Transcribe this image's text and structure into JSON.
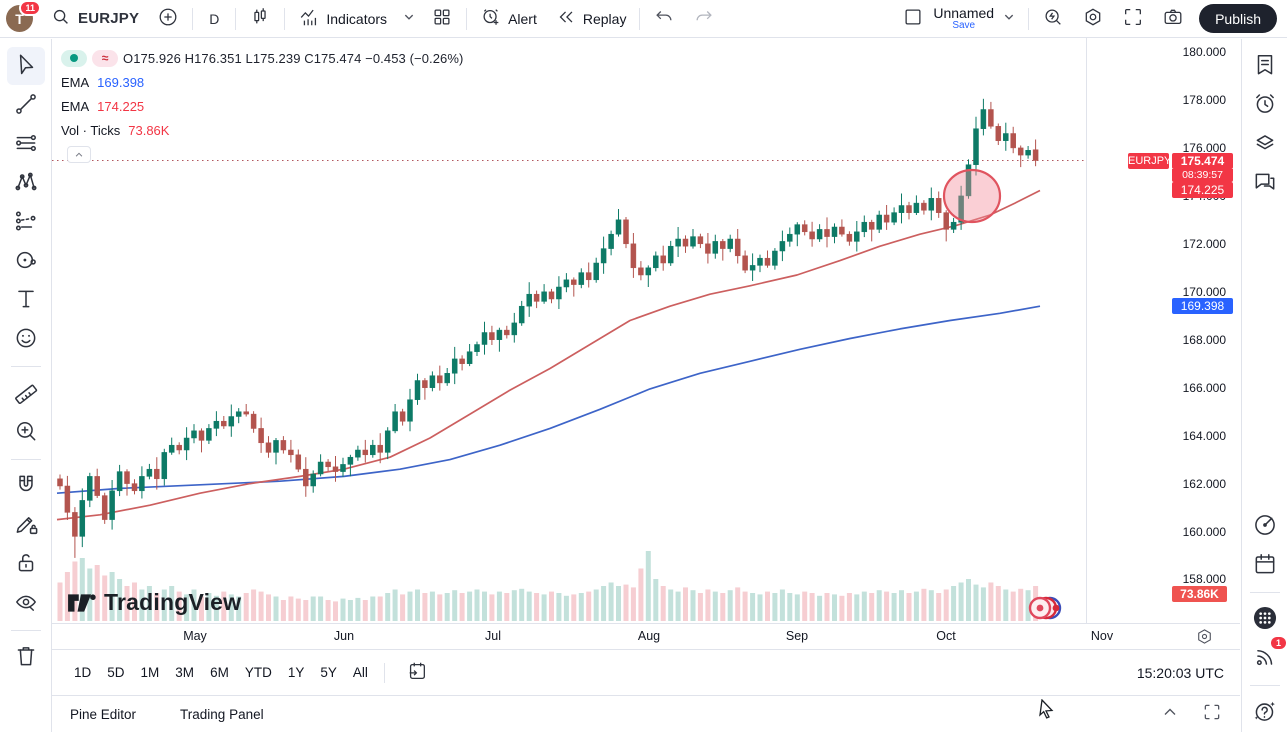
{
  "topbar": {
    "avatar_initial": "T",
    "notifications": "11",
    "symbol": "EURJPY",
    "interval": "D",
    "indicators_label": "Indicators",
    "alert_label": "Alert",
    "replay_label": "Replay",
    "layout_name": "Unnamed",
    "save_label": "Save",
    "publish_label": "Publish"
  },
  "left_toolbar": {
    "items": [
      {
        "name": "cursor-tool",
        "icon": "cursor",
        "selected": true
      },
      {
        "name": "trend-line-tool",
        "icon": "trendline"
      },
      {
        "name": "fib-lines-tool",
        "icon": "hlines"
      },
      {
        "name": "xabcd-pattern-tool",
        "icon": "xabcd"
      },
      {
        "name": "forecast-tool",
        "icon": "forecast"
      },
      {
        "name": "circle-shape-tool",
        "icon": "circleshape"
      },
      {
        "name": "text-tool",
        "icon": "text"
      },
      {
        "name": "emoji-tool",
        "icon": "emoji"
      },
      {
        "name": "divider"
      },
      {
        "name": "measure-tool",
        "icon": "ruler"
      },
      {
        "name": "zoom-in-tool",
        "icon": "zoomin"
      },
      {
        "name": "divider"
      },
      {
        "name": "magnet-mode",
        "icon": "magnet"
      },
      {
        "name": "drawing-mode",
        "icon": "pencillock"
      },
      {
        "name": "lock-drawings",
        "icon": "lock"
      },
      {
        "name": "hide-drawings",
        "icon": "eyeoff"
      },
      {
        "name": "divider"
      },
      {
        "name": "remove-drawings",
        "icon": "trash"
      }
    ]
  },
  "right_sidebar": {
    "items": [
      {
        "name": "watchlist-panel",
        "icon": "watchlist"
      },
      {
        "name": "alerts-panel",
        "icon": "alarm"
      },
      {
        "name": "object-tree-panel",
        "icon": "layers"
      },
      {
        "name": "chat-panel",
        "icon": "chat"
      },
      {
        "name": "spacer"
      },
      {
        "name": "hotlists-panel",
        "icon": "target"
      },
      {
        "name": "calendar-panel",
        "icon": "calendar"
      },
      {
        "name": "divider"
      },
      {
        "name": "apps-menu",
        "icon": "apps"
      },
      {
        "name": "streams-panel",
        "icon": "broadcast",
        "badge": "1"
      },
      {
        "name": "divider"
      },
      {
        "name": "help-menu",
        "icon": "help"
      }
    ]
  },
  "legend": {
    "ohlc": "O175.926  H176.351  L175.239  C175.474  −0.453 (−0.26%)",
    "sync_glyph": "≈",
    "ema1_label": "EMA",
    "ema1_value": "169.398",
    "ema2_label": "EMA",
    "ema2_value": "174.225",
    "vol_label": "Vol · Ticks",
    "vol_value": "73.86K"
  },
  "watermark": "TradingView",
  "range_toolbar": {
    "buttons": [
      "1D",
      "5D",
      "1M",
      "3M",
      "6M",
      "YTD",
      "1Y",
      "5Y",
      "All"
    ],
    "clock": "15:20:03 UTC"
  },
  "status_bar": {
    "pine_editor": "Pine Editor",
    "trading_panel": "Trading Panel"
  },
  "chart_data": {
    "type": "candlestick",
    "symbol": "EURJPY",
    "interval": "1 day",
    "ylim": [
      158,
      180
    ],
    "y_ticks": [
      180,
      178,
      176,
      174,
      172,
      170,
      168,
      166,
      164,
      162,
      160,
      158
    ],
    "months": [
      {
        "label": "May",
        "x": 143
      },
      {
        "label": "Jun",
        "x": 292
      },
      {
        "label": "Jul",
        "x": 441
      },
      {
        "label": "Aug",
        "x": 597
      },
      {
        "label": "Sep",
        "x": 745
      },
      {
        "label": "Oct",
        "x": 894
      },
      {
        "label": "Nov",
        "x": 1050
      }
    ],
    "first_open": 162.2,
    "closes": [
      161.9,
      160.8,
      159.8,
      161.3,
      162.3,
      161.5,
      160.5,
      161.7,
      162.5,
      162.0,
      161.7,
      162.3,
      162.6,
      162.2,
      163.3,
      163.6,
      163.4,
      163.9,
      164.2,
      163.8,
      164.3,
      164.6,
      164.4,
      164.8,
      165.0,
      164.9,
      164.3,
      163.7,
      163.3,
      163.8,
      163.4,
      163.2,
      162.6,
      161.9,
      162.4,
      162.9,
      162.7,
      162.5,
      162.8,
      163.1,
      163.4,
      163.2,
      163.6,
      163.3,
      164.2,
      165.0,
      164.6,
      165.5,
      166.3,
      166.0,
      166.5,
      166.2,
      166.6,
      167.2,
      167.0,
      167.5,
      167.8,
      168.3,
      168.0,
      168.4,
      168.2,
      168.7,
      169.4,
      169.9,
      169.6,
      170.0,
      169.7,
      170.2,
      170.5,
      170.3,
      170.8,
      170.5,
      171.2,
      171.8,
      172.4,
      173.0,
      172.0,
      171.0,
      170.7,
      171.0,
      171.5,
      171.2,
      171.9,
      172.2,
      171.9,
      172.3,
      172.0,
      171.6,
      172.1,
      171.8,
      172.2,
      171.5,
      170.9,
      171.1,
      171.4,
      171.1,
      171.7,
      172.1,
      172.4,
      172.8,
      172.5,
      172.2,
      172.6,
      172.3,
      172.7,
      172.4,
      172.1,
      172.5,
      172.9,
      172.6,
      173.2,
      172.9,
      173.3,
      173.6,
      173.3,
      173.7,
      173.4,
      173.9,
      173.3,
      172.6,
      172.9,
      174.0,
      175.3,
      176.8,
      177.6,
      176.9,
      176.3,
      176.6,
      176.0,
      175.7,
      175.9,
      175.474
    ],
    "volumes": [
      0.55,
      0.7,
      0.85,
      0.9,
      0.75,
      0.8,
      0.65,
      0.7,
      0.6,
      0.5,
      0.55,
      0.45,
      0.5,
      0.4,
      0.45,
      0.5,
      0.42,
      0.38,
      0.45,
      0.35,
      0.4,
      0.36,
      0.42,
      0.38,
      0.35,
      0.4,
      0.45,
      0.42,
      0.38,
      0.35,
      0.3,
      0.35,
      0.32,
      0.3,
      0.35,
      0.35,
      0.3,
      0.28,
      0.32,
      0.3,
      0.33,
      0.3,
      0.35,
      0.35,
      0.4,
      0.45,
      0.38,
      0.42,
      0.45,
      0.4,
      0.42,
      0.38,
      0.4,
      0.44,
      0.4,
      0.42,
      0.45,
      0.42,
      0.38,
      0.42,
      0.4,
      0.44,
      0.46,
      0.42,
      0.4,
      0.38,
      0.42,
      0.4,
      0.36,
      0.38,
      0.4,
      0.42,
      0.45,
      0.5,
      0.55,
      0.5,
      0.52,
      0.48,
      0.75,
      1.0,
      0.6,
      0.5,
      0.45,
      0.42,
      0.48,
      0.44,
      0.4,
      0.45,
      0.42,
      0.4,
      0.44,
      0.48,
      0.42,
      0.4,
      0.38,
      0.42,
      0.4,
      0.45,
      0.4,
      0.38,
      0.42,
      0.4,
      0.36,
      0.4,
      0.38,
      0.36,
      0.4,
      0.38,
      0.42,
      0.4,
      0.44,
      0.42,
      0.4,
      0.44,
      0.4,
      0.42,
      0.46,
      0.44,
      0.4,
      0.45,
      0.5,
      0.55,
      0.6,
      0.52,
      0.48,
      0.55,
      0.5,
      0.45,
      0.42,
      0.46,
      0.44,
      0.5
    ],
    "wick_top_pattern": [
      0.18,
      0.42,
      0.22,
      0.5,
      0.15,
      0.32,
      0.12,
      0.45,
      0.28,
      0.1
    ],
    "wick_bottom_offset": 4,
    "overrides": {
      "2": {
        "l": 158.9
      },
      "75": {
        "h": 173.45
      },
      "124": {
        "h": 178.05
      },
      "131": {
        "o": 175.926,
        "h": 176.351,
        "l": 175.239,
        "c": 175.474
      }
    },
    "last_price": "175.474",
    "countdown": "08:39:57",
    "emas": [
      {
        "label": "EMA",
        "value": "169.398",
        "color": "#3d64c8",
        "anchors": [
          [
            57,
            161.6
          ],
          [
            120,
            161.8
          ],
          [
            200,
            161.95
          ],
          [
            280,
            162.1
          ],
          [
            344,
            162.3
          ],
          [
            400,
            162.6
          ],
          [
            450,
            163.0
          ],
          [
            500,
            163.6
          ],
          [
            550,
            164.3
          ],
          [
            600,
            165.1
          ],
          [
            650,
            165.95
          ],
          [
            700,
            166.6
          ],
          [
            750,
            167.1
          ],
          [
            800,
            167.6
          ],
          [
            850,
            168.05
          ],
          [
            900,
            168.45
          ],
          [
            950,
            168.8
          ],
          [
            1000,
            169.1
          ],
          [
            1040,
            169.398
          ]
        ]
      },
      {
        "label": "EMA",
        "value": "174.225",
        "color": "#cc5f5f",
        "anchors": [
          [
            57,
            160.5
          ],
          [
            100,
            160.7
          ],
          [
            150,
            161.1
          ],
          [
            200,
            161.6
          ],
          [
            250,
            162.0
          ],
          [
            300,
            162.3
          ],
          [
            344,
            162.6
          ],
          [
            390,
            163.1
          ],
          [
            430,
            163.9
          ],
          [
            470,
            164.9
          ],
          [
            510,
            165.9
          ],
          [
            550,
            166.8
          ],
          [
            590,
            167.8
          ],
          [
            630,
            168.8
          ],
          [
            670,
            169.4
          ],
          [
            710,
            169.9
          ],
          [
            750,
            170.25
          ],
          [
            797,
            170.7
          ],
          [
            840,
            171.3
          ],
          [
            880,
            171.9
          ],
          [
            920,
            172.4
          ],
          [
            955,
            172.75
          ],
          [
            990,
            173.2
          ],
          [
            1015,
            173.7
          ],
          [
            1040,
            174.225
          ]
        ]
      }
    ],
    "drawing_ellipse": {
      "cx": 972,
      "cy": 196,
      "rx": 28,
      "ry": 26
    },
    "colors": {
      "up": "#0d7a66",
      "down": "#b3544e",
      "vol_up": "#c3e1db",
      "vol_down": "#f6ced2",
      "price_line": "#b1575e",
      "tag_red": "#f23645",
      "tag_blue": "#2962ff",
      "tag_vol": "#ef5350"
    },
    "volume_last_label": "73.86K"
  }
}
